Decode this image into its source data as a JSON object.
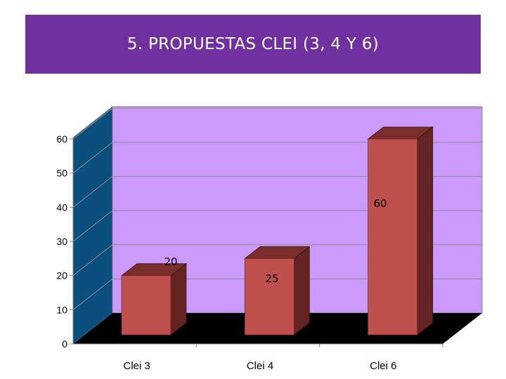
{
  "title": "5. PROPUESTAS CLEI (3, 4 Y 6)",
  "colors": {
    "banner": "#7030a0",
    "back_wall": "#cc99ff",
    "side_wall": "#0b4f7f",
    "floor": "#000000",
    "bar_front": "#c0504d",
    "bar_top": "#7a2e2c",
    "bar_side": "#632423"
  },
  "chart_data": {
    "type": "bar",
    "style": "3d-column",
    "categories": [
      "Clei 3",
      "Clei 4",
      "Clei 6"
    ],
    "values": [
      20,
      25,
      60
    ],
    "data_labels": [
      "20",
      "25",
      "60"
    ],
    "yticks": [
      "0",
      "10",
      "20",
      "30",
      "40",
      "50",
      "60"
    ],
    "ylim": [
      0,
      60
    ],
    "grid": true,
    "legend": false
  }
}
